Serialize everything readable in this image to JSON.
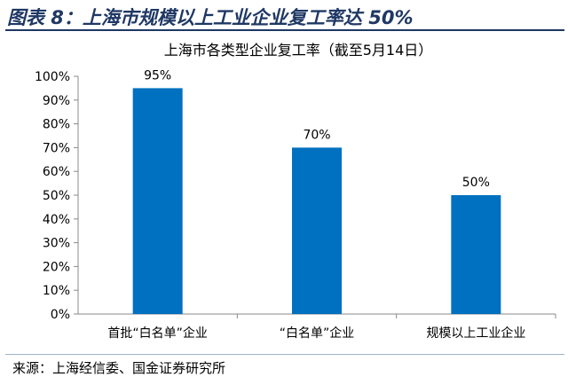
{
  "figure": {
    "title": "图表 8：上海市规模以上工业企业复工率达 50%",
    "source": "来源：上海经信委、国金证券研究所"
  },
  "chart_data": {
    "type": "bar",
    "title": "上海市各类型企业复工率（截至5月14日）",
    "categories": [
      "首批“白名单”企业",
      "“白名单”企业",
      "规模以上工业企业"
    ],
    "values": [
      95,
      70,
      50
    ],
    "data_labels": [
      "95%",
      "70%",
      "50%"
    ],
    "ylim": [
      0,
      100
    ],
    "yticks": [
      "0%",
      "10%",
      "20%",
      "30%",
      "40%",
      "50%",
      "60%",
      "70%",
      "80%",
      "90%",
      "100%"
    ],
    "xlabel": "",
    "ylabel": "",
    "grid": false,
    "legend": "none",
    "colors": {
      "bar": "#0070c0",
      "axis": "#888888",
      "title_bar": "#1f3864"
    }
  }
}
